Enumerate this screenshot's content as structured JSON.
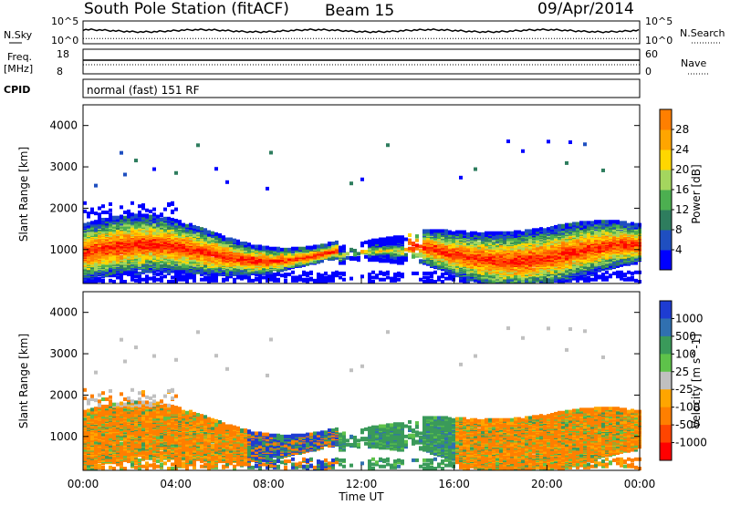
{
  "header": {
    "station": "South Pole Station (fitACF)",
    "beam": "Beam 15",
    "date": "09/Apr/2014"
  },
  "aux": {
    "nsky_label": "N.Sky",
    "nsearch_label": "N.Search",
    "freq_label_1": "Freq.",
    "freq_label_2": "[MHz]",
    "nave_label": "Nave",
    "cpid_label": "CPID",
    "cpid_text": "normal (fast) 151 RF",
    "noise_ticks": [
      "10^5",
      "10^0"
    ],
    "freq_ticks": [
      "18",
      "8"
    ],
    "nave_ticks": [
      "60",
      "0"
    ]
  },
  "chart_data": [
    {
      "type": "heatmap",
      "panel": "power",
      "ylabel": "Slant Range [km]",
      "xlabel": "",
      "ylim": [
        180,
        4500
      ],
      "yticks": [
        1000,
        2000,
        3000,
        4000
      ],
      "xlim_hours": [
        0,
        24
      ],
      "colorbar": {
        "label": "Power [dB]",
        "ticks": [
          "4",
          "8",
          "12",
          "16",
          "20",
          "24",
          "28"
        ],
        "colors": [
          "#0000ff",
          "#1f4fc0",
          "#2e7d5e",
          "#4caf50",
          "#a4d65e",
          "#ffd700",
          "#ffa500",
          "#ff7f00",
          "#ff4500",
          "#ff0000"
        ]
      },
      "main_echo_band_km": [
        500,
        1800
      ],
      "strongest_echo_km": [
        600,
        1100
      ]
    },
    {
      "type": "heatmap",
      "panel": "velocity",
      "ylabel": "Slant Range [km]",
      "xlabel": "Time UT",
      "ylim": [
        180,
        4500
      ],
      "yticks": [
        1000,
        2000,
        3000,
        4000
      ],
      "xticks": [
        "00:00",
        "04:00",
        "08:00",
        "12:00",
        "16:00",
        "20:00",
        "00:00"
      ],
      "colorbar": {
        "label": "Velocity [m s^-1]",
        "ticks": [
          "1000",
          "500",
          "100",
          "25",
          "-25",
          "-100",
          "-500",
          "-1000"
        ],
        "colors": [
          "#1e3cd2",
          "#3070b0",
          "#3a9a5a",
          "#5ec24a",
          "#c0c0c0",
          "#ffa500",
          "#ff7f00",
          "#ff4500",
          "#ff0000"
        ]
      },
      "main_echo_band_km": [
        500,
        1800
      ]
    }
  ]
}
